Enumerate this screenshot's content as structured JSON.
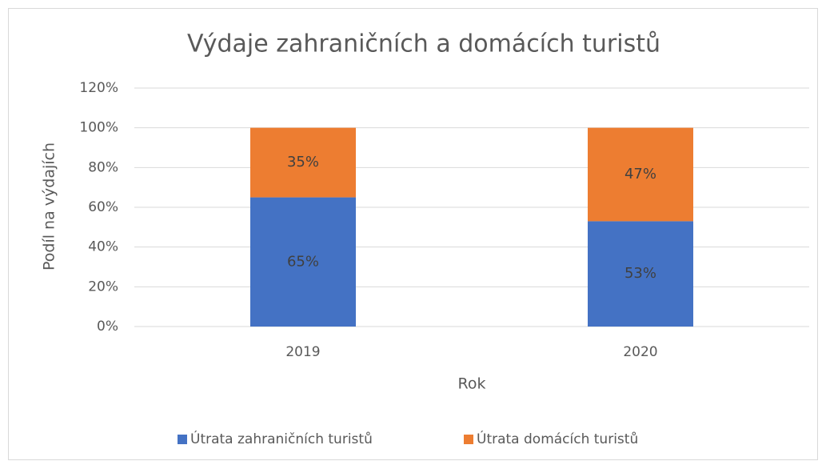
{
  "chart_data": {
    "type": "stacked_bar",
    "title": "Výdaje zahraničních a domácích turistů",
    "x_label": "Rok",
    "y_label": "Podíl na výdajích",
    "categories": [
      "2019",
      "2020"
    ],
    "series": [
      {
        "name": "Útrata zahraničních turistů",
        "color": "#4472c4",
        "values": [
          65,
          53
        ],
        "value_labels": [
          "65%",
          "53%"
        ]
      },
      {
        "name": "Útrata domácích turistů",
        "color": "#ed7d31",
        "values": [
          35,
          47
        ],
        "value_labels": [
          "35%",
          "47%"
        ]
      }
    ],
    "ylim": [
      0,
      120
    ],
    "yticks": [
      {
        "value": 0,
        "label": "0%"
      },
      {
        "value": 20,
        "label": "20%"
      },
      {
        "value": 40,
        "label": "40%"
      },
      {
        "value": 60,
        "label": "60%"
      },
      {
        "value": 80,
        "label": "80%"
      },
      {
        "value": 100,
        "label": "100%"
      },
      {
        "value": 120,
        "label": "120%"
      }
    ],
    "grid": true,
    "legend": "bottom"
  }
}
